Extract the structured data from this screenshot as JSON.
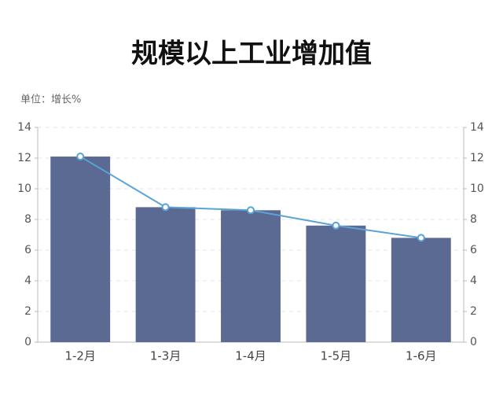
{
  "chart_data": {
    "type": "bar",
    "title": "规模以上工业增加值",
    "unit_label": "单位：增长%",
    "categories": [
      "1-2月",
      "1-3月",
      "1-4月",
      "1-5月",
      "1-6月"
    ],
    "series": [
      {
        "type": "bar",
        "color": "#5a6a93",
        "values": [
          12.1,
          8.8,
          8.6,
          7.6,
          6.8
        ]
      },
      {
        "type": "line",
        "axis": "y2",
        "color": "#5aa3d6",
        "values": [
          12.1,
          8.8,
          8.6,
          7.6,
          6.8
        ]
      }
    ],
    "ylim": [
      0,
      14
    ],
    "yticks": [
      0,
      2,
      4,
      6,
      8,
      10,
      12,
      14
    ],
    "y2lim": [
      0,
      14
    ],
    "y2ticks": [
      0,
      2,
      4,
      6,
      8,
      10,
      12,
      14
    ],
    "grid": true
  }
}
